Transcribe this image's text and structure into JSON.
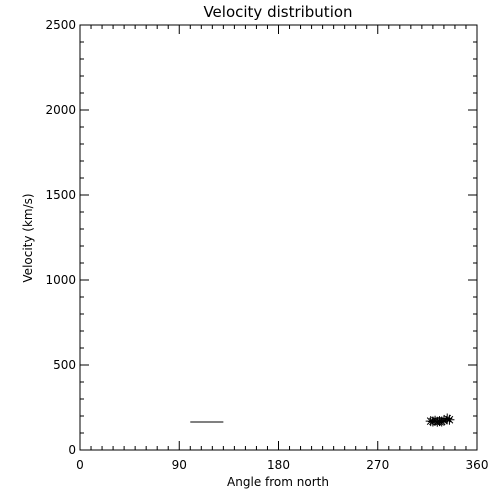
{
  "chart_data": {
    "type": "scatter",
    "title": "Velocity distribution",
    "xlabel": "Angle from north",
    "ylabel": "Velocity (km/s)",
    "xlim": [
      0,
      360
    ],
    "ylim": [
      0,
      2500
    ],
    "xticks": [
      0,
      90,
      180,
      270,
      360
    ],
    "yticks": [
      0,
      500,
      1000,
      1500,
      2000,
      2500
    ],
    "x_minor_step": 10,
    "y_minor_step": 100,
    "grid": false,
    "color": "#000000",
    "segments": [
      {
        "x": [
          100,
          130
        ],
        "y": [
          165,
          165
        ]
      }
    ],
    "points": [
      {
        "x": 318,
        "y": 170
      },
      {
        "x": 320,
        "y": 168
      },
      {
        "x": 322,
        "y": 172
      },
      {
        "x": 324,
        "y": 166
      },
      {
        "x": 326,
        "y": 170
      },
      {
        "x": 328,
        "y": 168
      },
      {
        "x": 330,
        "y": 172
      },
      {
        "x": 333,
        "y": 185
      },
      {
        "x": 335,
        "y": 178
      }
    ]
  }
}
